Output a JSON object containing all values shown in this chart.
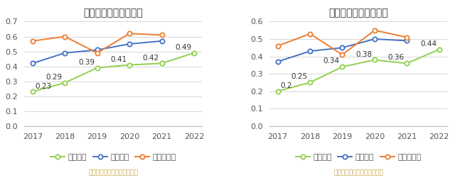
{
  "years": [
    2017,
    2018,
    2019,
    2020,
    2021,
    2022
  ],
  "chart1": {
    "title": "历年流动比率变化情况",
    "series_values": [
      0.23,
      0.29,
      0.39,
      0.41,
      0.42,
      0.49
    ],
    "industry_avg": [
      0.42,
      0.49,
      0.51,
      0.55,
      0.57,
      null
    ],
    "industry_median": [
      0.57,
      0.6,
      0.49,
      0.62,
      0.61,
      null
    ],
    "ylim": [
      0,
      0.7
    ],
    "yticks": [
      0,
      0.1,
      0.2,
      0.3,
      0.4,
      0.5,
      0.6,
      0.7
    ],
    "legend_label": "流动比率"
  },
  "chart2": {
    "title": "历年速动比率变化情况",
    "series_values": [
      0.2,
      0.25,
      0.34,
      0.38,
      0.36,
      0.44
    ],
    "industry_avg": [
      0.37,
      0.43,
      0.45,
      0.5,
      0.49,
      null
    ],
    "industry_median": [
      0.46,
      0.53,
      0.41,
      0.55,
      0.51,
      null
    ],
    "ylim": [
      0,
      0.6
    ],
    "yticks": [
      0,
      0.1,
      0.2,
      0.3,
      0.4,
      0.5,
      0.6
    ],
    "legend_label": "速动比率"
  },
  "colors": {
    "series": "#92d050",
    "industry_avg": "#4472c4",
    "industry_median": "#ed7d31"
  },
  "annotation_color": "#333333",
  "footer_color": "#c8a23c",
  "footer_text": "制图数据来自恒生聚源数据库",
  "legend_avg": "行业均值",
  "legend_median": "行业中位数",
  "background_color": "#ffffff",
  "title_fontsize": 10,
  "tick_fontsize": 8,
  "legend_fontsize": 8,
  "annotation_fontsize": 7.5,
  "footer_fontsize": 6.5
}
